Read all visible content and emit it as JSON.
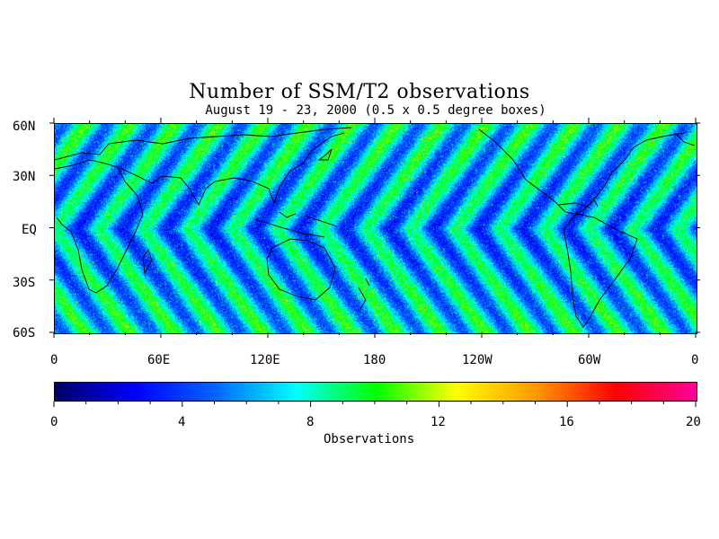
{
  "title": "Number of SSM/T2 observations",
  "subtitle": "August 19 - 23, 2000 (0.5 x 0.5 degree boxes)",
  "map": {
    "lat_labels": [
      "60N",
      "30N",
      "EQ",
      "30S",
      "60S"
    ],
    "lon_labels": [
      "0",
      "60E",
      "120E",
      "180",
      "120W",
      "60W",
      "0"
    ],
    "lat_range": [
      -60,
      60
    ],
    "lon_range": [
      0,
      360
    ],
    "grid_resolution_deg": 0.5,
    "pattern": "diagonal orbital swath stripes, low counts (blue) alternating with higher counts (green/yellow)"
  },
  "colorbar": {
    "tick_labels": [
      "0",
      "4",
      "8",
      "12",
      "16",
      "20"
    ],
    "range": [
      0,
      20
    ],
    "label": "Observations",
    "colors": [
      "#000066",
      "#0000ff",
      "#0066ff",
      "#00ffff",
      "#00ff00",
      "#ffff00",
      "#ff9900",
      "#ff0000",
      "#ff0099"
    ]
  }
}
